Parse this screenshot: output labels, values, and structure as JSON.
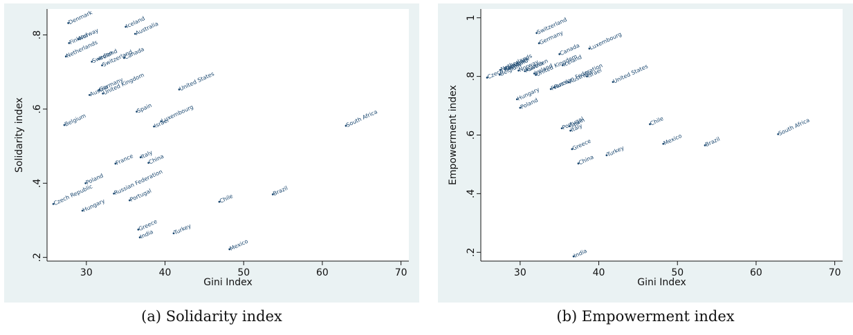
{
  "chart_data": [
    {
      "type": "scatter",
      "caption": "(a) Solidarity index",
      "xlabel": "Gini Index",
      "ylabel": "Solidarity index",
      "xlim": [
        25,
        71
      ],
      "ylim": [
        0.19,
        0.87
      ],
      "xticks": [
        30,
        40,
        50,
        60,
        70
      ],
      "yticks": [
        0.2,
        0.4,
        0.6,
        0.8
      ],
      "ytick_labels": [
        ".2",
        ".4",
        ".6",
        ".8"
      ],
      "grid": false,
      "points": [
        {
          "label": "Denmark",
          "x": 27.7,
          "y": 0.832
        },
        {
          "label": "Finland",
          "x": 27.8,
          "y": 0.778
        },
        {
          "label": "Norway",
          "x": 29.0,
          "y": 0.789
        },
        {
          "label": "Netherlands",
          "x": 27.4,
          "y": 0.742
        },
        {
          "label": "Iceland",
          "x": 35.0,
          "y": 0.822
        },
        {
          "label": "Australia",
          "x": 36.2,
          "y": 0.803
        },
        {
          "label": "Sweden",
          "x": 30.7,
          "y": 0.728
        },
        {
          "label": "Ireland",
          "x": 31.6,
          "y": 0.735
        },
        {
          "label": "Switzerland",
          "x": 32.0,
          "y": 0.718
        },
        {
          "label": "Canada",
          "x": 34.8,
          "y": 0.738
        },
        {
          "label": "Germany",
          "x": 31.6,
          "y": 0.651
        },
        {
          "label": "United Kingdom",
          "x": 32.1,
          "y": 0.642
        },
        {
          "label": "Austria",
          "x": 30.4,
          "y": 0.638
        },
        {
          "label": "United States",
          "x": 41.8,
          "y": 0.653
        },
        {
          "label": "Spain",
          "x": 36.4,
          "y": 0.593
        },
        {
          "label": "Luxembourg",
          "x": 39.5,
          "y": 0.567
        },
        {
          "label": "Israel",
          "x": 38.6,
          "y": 0.553
        },
        {
          "label": "Belgium",
          "x": 27.2,
          "y": 0.557
        },
        {
          "label": "South Africa",
          "x": 63.0,
          "y": 0.555
        },
        {
          "label": "France",
          "x": 33.7,
          "y": 0.453
        },
        {
          "label": "Italy",
          "x": 36.9,
          "y": 0.47
        },
        {
          "label": "China",
          "x": 37.9,
          "y": 0.455
        },
        {
          "label": "Russian Federation",
          "x": 33.5,
          "y": 0.372
        },
        {
          "label": "Poland",
          "x": 29.9,
          "y": 0.4
        },
        {
          "label": "Czech Republic",
          "x": 25.8,
          "y": 0.344
        },
        {
          "label": "Portugal",
          "x": 35.5,
          "y": 0.354
        },
        {
          "label": "Hungary",
          "x": 29.5,
          "y": 0.326
        },
        {
          "label": "Chile",
          "x": 46.9,
          "y": 0.35
        },
        {
          "label": "Brazil",
          "x": 53.7,
          "y": 0.37
        },
        {
          "label": "Greece",
          "x": 36.6,
          "y": 0.275
        },
        {
          "label": "India",
          "x": 36.8,
          "y": 0.254
        },
        {
          "label": "Turkey",
          "x": 41.1,
          "y": 0.265
        },
        {
          "label": "Mexico",
          "x": 48.2,
          "y": 0.222
        }
      ]
    },
    {
      "type": "scatter",
      "caption": "(b) Empowerment index",
      "xlabel": "Gini Index",
      "ylabel": "Empowerment index",
      "xlim": [
        25,
        71
      ],
      "ylim": [
        0.17,
        1.03
      ],
      "xticks": [
        30,
        40,
        50,
        60,
        70
      ],
      "yticks": [
        0.2,
        0.4,
        0.6,
        0.8,
        1.0
      ],
      "ytick_labels": [
        ".2",
        ".4",
        ".6",
        ".8",
        "1"
      ],
      "grid": false,
      "points": [
        {
          "label": "Switzerland",
          "x": 32.1,
          "y": 0.948
        },
        {
          "label": "Germany",
          "x": 32.4,
          "y": 0.913
        },
        {
          "label": "Luxembourg",
          "x": 38.8,
          "y": 0.895
        },
        {
          "label": "Canada",
          "x": 35.0,
          "y": 0.876
        },
        {
          "label": "Czech Republic",
          "x": 25.8,
          "y": 0.796
        },
        {
          "label": "Netherlands",
          "x": 27.5,
          "y": 0.822
        },
        {
          "label": "Denmark",
          "x": 28.1,
          "y": 0.824
        },
        {
          "label": "Finland",
          "x": 28.6,
          "y": 0.826
        },
        {
          "label": "Belgium",
          "x": 27.4,
          "y": 0.806
        },
        {
          "label": "Norway",
          "x": 29.8,
          "y": 0.82
        },
        {
          "label": "Sweden",
          "x": 30.9,
          "y": 0.822
        },
        {
          "label": "Austria",
          "x": 30.6,
          "y": 0.818
        },
        {
          "label": "Ireland",
          "x": 31.8,
          "y": 0.81
        },
        {
          "label": "United Kingdom",
          "x": 32.0,
          "y": 0.805
        },
        {
          "label": "Iceland",
          "x": 35.4,
          "y": 0.838
        },
        {
          "label": "Russian Federation",
          "x": 34.3,
          "y": 0.762
        },
        {
          "label": "Australia",
          "x": 36.2,
          "y": 0.78
        },
        {
          "label": "France",
          "x": 33.9,
          "y": 0.757
        },
        {
          "label": "Israel",
          "x": 38.5,
          "y": 0.8
        },
        {
          "label": "United States",
          "x": 41.8,
          "y": 0.781
        },
        {
          "label": "Hungary",
          "x": 29.6,
          "y": 0.722
        },
        {
          "label": "Poland",
          "x": 30.0,
          "y": 0.693
        },
        {
          "label": "Chile",
          "x": 46.5,
          "y": 0.637
        },
        {
          "label": "South Africa",
          "x": 62.8,
          "y": 0.603
        },
        {
          "label": "Portugal",
          "x": 35.3,
          "y": 0.623
        },
        {
          "label": "Spain",
          "x": 36.3,
          "y": 0.63
        },
        {
          "label": "Italy",
          "x": 36.4,
          "y": 0.615
        },
        {
          "label": "Greece",
          "x": 36.6,
          "y": 0.552
        },
        {
          "label": "Mexico",
          "x": 48.2,
          "y": 0.57
        },
        {
          "label": "Brazil",
          "x": 53.5,
          "y": 0.565
        },
        {
          "label": "Turkey",
          "x": 41.0,
          "y": 0.531
        },
        {
          "label": "China",
          "x": 37.4,
          "y": 0.503
        },
        {
          "label": "India",
          "x": 36.8,
          "y": 0.186
        }
      ]
    }
  ]
}
